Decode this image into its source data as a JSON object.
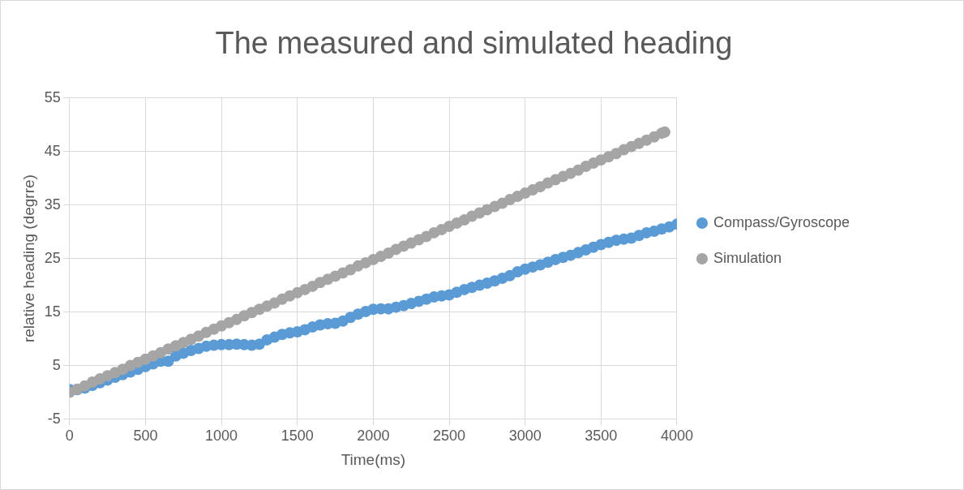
{
  "chart_data": {
    "type": "scatter",
    "title": "The measured and simulated heading",
    "xlabel": "Time(ms)",
    "ylabel": "relative heading (degrre)",
    "xlim": [
      0,
      4000
    ],
    "xticks": [
      0,
      500,
      1000,
      1500,
      2000,
      2500,
      3000,
      3500,
      4000
    ],
    "ylim": [
      -5,
      55
    ],
    "yticks": [
      -5,
      5,
      15,
      25,
      35,
      45,
      55
    ],
    "grid": true,
    "legend": "right",
    "marker": "circle",
    "series": [
      {
        "name": "Compass/Gyroscope",
        "color": "#5b9bd5",
        "x": [
          0,
          50,
          100,
          150,
          200,
          250,
          300,
          350,
          400,
          450,
          500,
          550,
          600,
          650,
          700,
          750,
          800,
          850,
          900,
          950,
          1000,
          1050,
          1100,
          1150,
          1200,
          1250,
          1300,
          1350,
          1400,
          1450,
          1500,
          1550,
          1600,
          1650,
          1700,
          1750,
          1800,
          1850,
          1900,
          1950,
          2000,
          2050,
          2100,
          2150,
          2200,
          2250,
          2300,
          2350,
          2400,
          2450,
          2500,
          2550,
          2600,
          2650,
          2700,
          2750,
          2800,
          2850,
          2900,
          2950,
          3000,
          3050,
          3100,
          3150,
          3200,
          3250,
          3300,
          3350,
          3400,
          3450,
          3500,
          3550,
          3600,
          3650,
          3700,
          3750,
          3800,
          3850,
          3900,
          3950,
          4000
        ],
        "values": [
          0.5,
          0.5,
          0.8,
          1.3,
          1.8,
          2.3,
          2.8,
          3.3,
          3.8,
          4.3,
          4.8,
          5.3,
          5.8,
          5.8,
          6.8,
          7.3,
          7.8,
          8.2,
          8.6,
          8.8,
          8.9,
          8.9,
          9.0,
          8.9,
          8.8,
          9.0,
          9.8,
          10.3,
          10.8,
          11.1,
          11.3,
          11.7,
          12.2,
          12.6,
          12.8,
          12.9,
          13.3,
          14.0,
          14.6,
          15.1,
          15.5,
          15.6,
          15.6,
          15.9,
          16.2,
          16.6,
          17.0,
          17.4,
          17.8,
          18.0,
          18.2,
          18.7,
          19.2,
          19.6,
          20.0,
          20.4,
          20.8,
          21.3,
          21.8,
          22.5,
          23.0,
          23.4,
          23.8,
          24.3,
          24.8,
          25.2,
          25.6,
          26.1,
          26.6,
          27.1,
          27.6,
          28.0,
          28.4,
          28.6,
          28.8,
          29.3,
          29.8,
          30.1,
          30.5,
          30.9,
          31.4
        ]
      },
      {
        "name": "Simulation",
        "color": "#a5a5a5",
        "x": [
          0,
          50,
          100,
          150,
          200,
          250,
          300,
          350,
          400,
          450,
          500,
          550,
          600,
          650,
          700,
          750,
          800,
          850,
          900,
          950,
          1000,
          1050,
          1100,
          1150,
          1200,
          1250,
          1300,
          1350,
          1400,
          1450,
          1500,
          1550,
          1600,
          1650,
          1700,
          1750,
          1800,
          1850,
          1900,
          1950,
          2000,
          2050,
          2100,
          2150,
          2200,
          2250,
          2300,
          2350,
          2400,
          2450,
          2500,
          2550,
          2600,
          2650,
          2700,
          2750,
          2800,
          2850,
          2900,
          2950,
          3000,
          3050,
          3100,
          3150,
          3200,
          3250,
          3300,
          3350,
          3400,
          3450,
          3500,
          3550,
          3600,
          3650,
          3700,
          3750,
          3800,
          3850,
          3900,
          3920
        ],
        "values": [
          0,
          0.6,
          1.2,
          1.9,
          2.5,
          3.1,
          3.7,
          4.3,
          5.0,
          5.6,
          6.2,
          6.8,
          7.4,
          8.1,
          8.7,
          9.3,
          9.9,
          10.5,
          11.2,
          11.8,
          12.4,
          13.0,
          13.6,
          14.3,
          14.9,
          15.5,
          16.1,
          16.7,
          17.4,
          18.0,
          18.6,
          19.2,
          19.8,
          20.5,
          21.1,
          21.7,
          22.3,
          22.9,
          23.6,
          24.2,
          24.8,
          25.4,
          26.0,
          26.7,
          27.3,
          27.9,
          28.5,
          29.1,
          29.8,
          30.4,
          31.0,
          31.6,
          32.2,
          32.9,
          33.5,
          34.1,
          34.7,
          35.3,
          36.0,
          36.6,
          37.2,
          37.8,
          38.4,
          39.1,
          39.7,
          40.3,
          40.9,
          41.5,
          42.2,
          42.8,
          43.4,
          44.0,
          44.6,
          45.3,
          45.9,
          46.5,
          47.1,
          47.7,
          48.4,
          48.6
        ]
      }
    ]
  }
}
